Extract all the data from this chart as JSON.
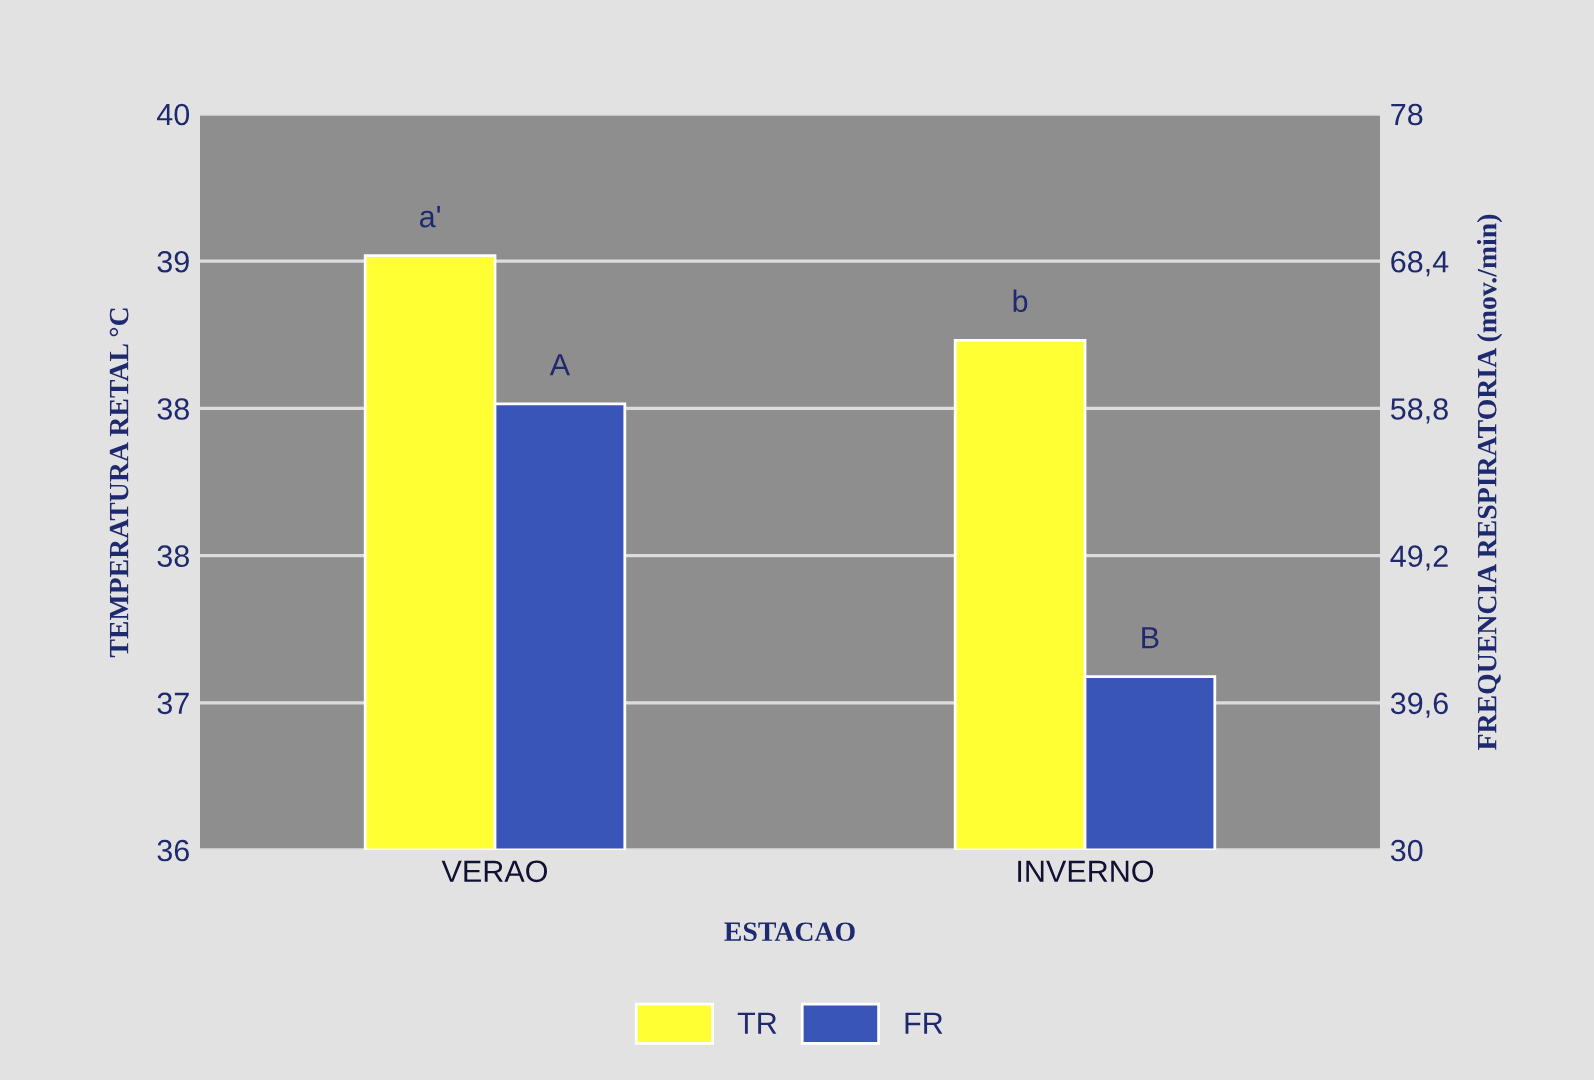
{
  "chart_data": {
    "type": "bar",
    "xlabel": "ESTACAO",
    "ylabel": "TEMPERATURA RETAL °C",
    "y2label": "FREQUENCIA RESPIRATORIA (mov./min)",
    "categories": [
      "VERAO",
      "INVERNO"
    ],
    "series": [
      {
        "name": "TR",
        "color": "#ffff33",
        "values": [
          39.23,
          38.77
        ],
        "value_labels": [
          "a'",
          "b"
        ]
      },
      {
        "name": "FR",
        "color": "#3a55b8",
        "values": [
          59.1,
          41.3
        ],
        "value_labels": [
          "A",
          "B"
        ],
        "axis": "y2"
      }
    ],
    "ylim": [
      36,
      40
    ],
    "yticks": [
      {
        "value": 36,
        "label": "36"
      },
      {
        "value": 36.8,
        "label": "37"
      },
      {
        "value": 37.6,
        "label": "38"
      },
      {
        "value": 38.4,
        "label": "38"
      },
      {
        "value": 39.2,
        "label": "39"
      },
      {
        "value": 40,
        "label": "40"
      }
    ],
    "y2lim": [
      30,
      78
    ],
    "y2ticks": [
      {
        "value": 30,
        "label": "30"
      },
      {
        "value": 39.6,
        "label": "39,6"
      },
      {
        "value": 49.2,
        "label": "49,2"
      },
      {
        "value": 58.8,
        "label": "58,8"
      },
      {
        "value": 68.4,
        "label": "68,4"
      },
      {
        "value": 78,
        "label": "78"
      }
    ],
    "grid": "y",
    "legend": "bottom"
  }
}
